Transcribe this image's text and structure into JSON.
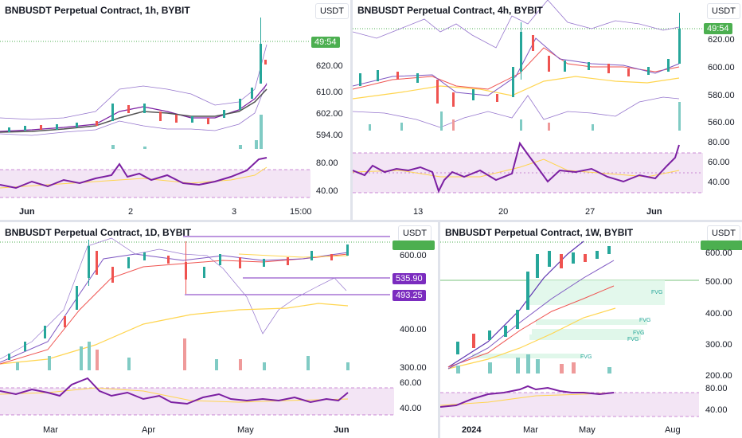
{
  "charts": [
    {
      "title": "BNBUSDT Perpetual Contract, 1h, BYBIT",
      "currency": "USDT",
      "price_tag": "49:54",
      "y_ticks": [
        "620.00",
        "610.00",
        "602.00",
        "594.00"
      ],
      "osc_ticks": [
        "80.00",
        "40.00"
      ],
      "x_ticks": [
        "Jun",
        "2",
        "3",
        "15:00"
      ]
    },
    {
      "title": "BNBUSDT Perpetual Contract, 4h, BYBIT",
      "currency": "USDT",
      "price_tag": "49:54",
      "y_ticks": [
        "620.00",
        "600.00",
        "580.00",
        "560.00"
      ],
      "osc_ticks": [
        "80.00",
        "60.00",
        "40.00"
      ],
      "x_ticks": [
        "13",
        "20",
        "27",
        "Jun"
      ]
    },
    {
      "title": "BNBUSDT Perpetual Contract, 1D, BYBIT",
      "currency": "USDT",
      "price_tag": "",
      "y_ticks": [
        "600.00",
        "400.00",
        "300.00"
      ],
      "level_tags": [
        "535.90",
        "493.25"
      ],
      "osc_ticks": [
        "60.00",
        "40.00"
      ],
      "x_ticks": [
        "Mar",
        "Apr",
        "May",
        "Jun"
      ]
    },
    {
      "title": "BNBUSDT Perpetual Contract, 1W, BYBIT",
      "currency": "USDT",
      "price_tag": "",
      "y_ticks": [
        "600.00",
        "500.00",
        "400.00",
        "300.00",
        "200.00"
      ],
      "osc_ticks": [
        "80.00",
        "40.00"
      ],
      "x_ticks": [
        "2024",
        "Mar",
        "May",
        "Aug"
      ],
      "fvg_labels": [
        "FVG",
        "FVG",
        "FVG",
        "FVG",
        "FVG"
      ]
    }
  ],
  "colors": {
    "up": "#26a69a",
    "down": "#ef5350",
    "rsi": "#7b1fa2",
    "rsi_bg": "#f3e5f5",
    "ma_yellow": "#ffd54f",
    "ma_red": "#ef5350",
    "ma_purple": "#7e57c2",
    "price_tag": "#4caf50",
    "level_tag": "#7b2cbf"
  }
}
